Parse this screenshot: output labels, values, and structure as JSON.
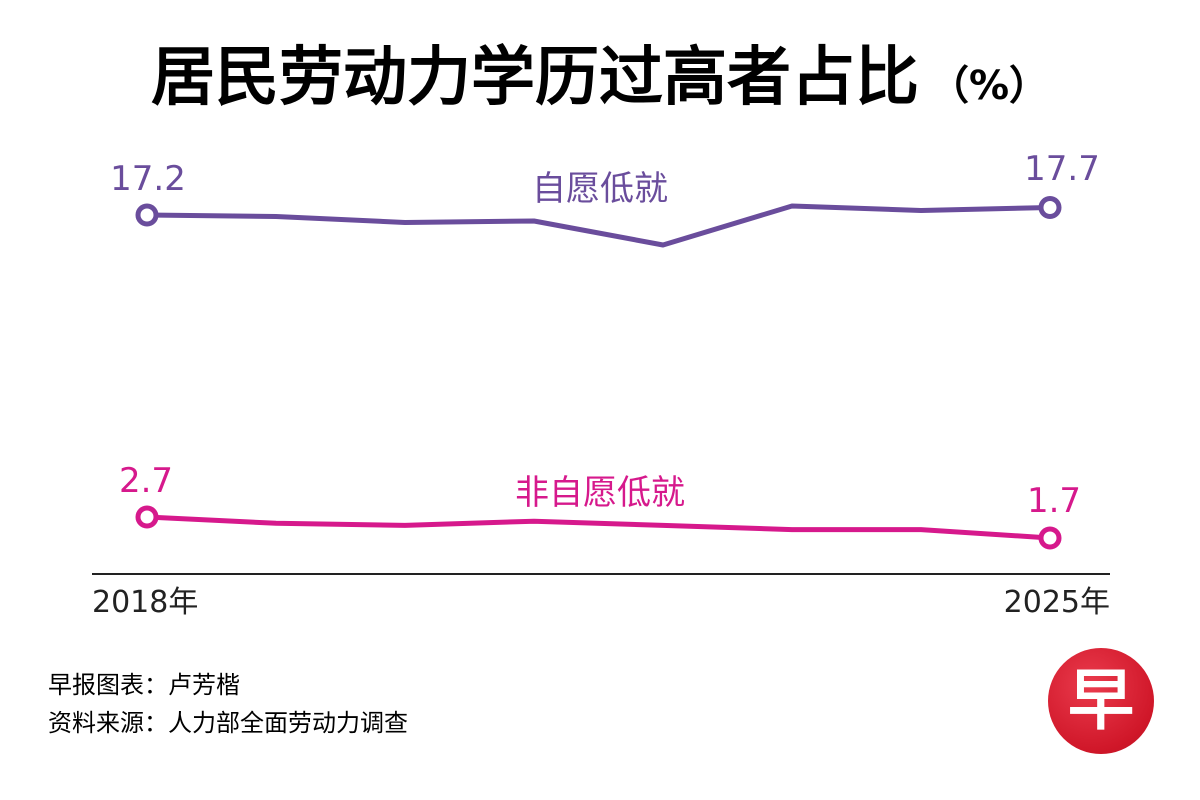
{
  "header": {
    "title": "居民劳动力学历过高者占比",
    "unit": "（%）"
  },
  "chart_data": {
    "type": "line",
    "title": "居民劳动力学历过高者占比",
    "unit": "（%）",
    "x_labels": [
      "2018年",
      "2025年"
    ],
    "x": [
      2018,
      2019,
      2020,
      2021,
      2022,
      2023,
      2024,
      2025
    ],
    "series": [
      {
        "name": "自愿低就",
        "color": "#6a4d9c",
        "values": [
          17.2,
          17.1,
          16.7,
          16.8,
          15.2,
          17.8,
          17.5,
          17.7
        ],
        "start_label": "17.2",
        "end_label": "17.7"
      },
      {
        "name": "非自愿低就",
        "color": "#d6198c",
        "values": [
          2.7,
          2.4,
          2.3,
          2.5,
          2.3,
          2.1,
          2.1,
          1.7
        ],
        "start_label": "2.7",
        "end_label": "1.7"
      }
    ],
    "grid": false,
    "legend": "inline"
  },
  "credits": {
    "graphic": "早报图表：卢芳楷",
    "source": "资料来源：人力部全面劳动力调查"
  },
  "logo": {
    "char": "早",
    "color": "#d01729"
  }
}
